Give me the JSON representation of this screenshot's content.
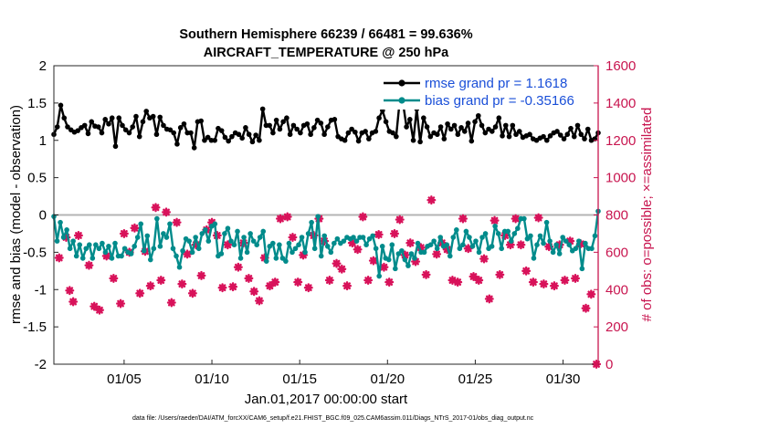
{
  "chart_data": {
    "type": "line",
    "title_line1": "Southern Hemisphere 66239 / 66481 = 99.636%",
    "title_line2": "AIRCRAFT_TEMPERATURE @ 250 hPa",
    "xlabel": "Jan.01,2017 00:00:00 start",
    "ylabel_left": "rmse and bias (model - observation)",
    "ylabel_right": "# of obs: o=possible; ×=assimilated",
    "footer": "data file: /Users/raeder/DAI/ATM_forcXX/CAM6_setup/f.e21.FHIST_BGC.f09_025.CAM6assim.011/Diags_NTrS_2017-01/obs_diag_output.nc",
    "xlim": [
      1,
      32
    ],
    "ylim_left": [
      -2,
      2
    ],
    "ylim_right": [
      0,
      1600
    ],
    "x_ticks": [
      5,
      10,
      15,
      20,
      25,
      30
    ],
    "x_tick_labels": [
      "01/05",
      "01/10",
      "01/15",
      "01/20",
      "01/25",
      "01/30"
    ],
    "y_ticks_left": [
      2,
      1.5,
      1,
      0.5,
      0,
      -0.5,
      -1,
      -1.5,
      -2
    ],
    "y_tick_labels_left": [
      "2",
      "1.5",
      "1",
      "0.5",
      "0",
      "-0.5",
      "-1",
      "-1.5",
      "-2"
    ],
    "y_ticks_right": [
      1600,
      1400,
      1200,
      1000,
      800,
      600,
      400,
      200,
      0
    ],
    "y_tick_labels_right": [
      "1600",
      "1400",
      "1200",
      "1000",
      "800",
      "600",
      "400",
      "200",
      "0"
    ],
    "zero_line": 0,
    "grid": false,
    "legend_position": "top-right",
    "colors": {
      "rmse": "#000000",
      "bias": "#008b8b",
      "obs": "#d8125a",
      "zero": "#b4b4b4",
      "right_axis": "#c8154f",
      "legend_text": "#1a4fd8"
    },
    "series": [
      {
        "name": "rmse grand pr = 1.1618",
        "color": "#000000",
        "values": [
          1.08,
          1.18,
          1.47,
          1.3,
          1.18,
          1.14,
          1.11,
          1.13,
          1.17,
          1.2,
          1.09,
          1.25,
          1.19,
          1.18,
          1.1,
          1.28,
          1.22,
          1.3,
          0.92,
          1.3,
          1.2,
          1.14,
          1.1,
          1.18,
          1.32,
          1.05,
          1.25,
          1.39,
          1.3,
          1.32,
          1.08,
          1.31,
          1.2,
          1.15,
          1.14,
          1.1,
          0.95,
          1.17,
          1.22,
          1.1,
          1.1,
          0.9,
          1.25,
          1.26,
          1.0,
          1.04,
          1.0,
          1.0,
          1.16,
          1.13,
          1.04,
          0.99,
          1.05,
          1.1,
          1.08,
          1.03,
          1.17,
          1.08,
          0.98,
          1.07,
          1.0,
          1.42,
          1.2,
          1.2,
          1.1,
          1.27,
          1.15,
          1.25,
          1.3,
          1.08,
          1.2,
          1.15,
          1.1,
          1.2,
          1.22,
          1.08,
          1.17,
          1.27,
          1.23,
          1.08,
          1.18,
          1.27,
          1.28,
          1.05,
          1.02,
          1.0,
          1.1,
          1.15,
          1.11,
          0.99,
          1.1,
          1.12,
          1.02,
          1.1,
          1.12,
          1.3,
          1.4,
          1.25,
          1.12,
          1.1,
          1.05,
          1.52,
          1.5,
          1.18,
          1.28,
          1.0,
          1.42,
          0.98,
          1.3,
          1.18,
          1.05,
          1.1,
          1.08,
          1.18,
          1.02,
          1.22,
          1.15,
          1.2,
          1.08,
          1.17,
          1.12,
          1.23,
          0.99,
          1.25,
          1.33,
          1.2,
          1.1,
          1.15,
          1.12,
          1.18,
          1.3,
          1.06,
          1.2,
          1.05,
          1.2,
          1.08,
          1.12,
          1.04,
          1.06,
          1.08,
          1.02,
          1.0,
          1.03,
          1.05,
          1.0,
          1.06,
          1.1,
          1.12,
          1.07,
          1.02,
          1.08,
          1.16,
          1.05,
          1.2,
          1.08,
          1.02,
          1.15,
          1.0,
          1.02,
          1.1
        ]
      },
      {
        "name": "bias grand pr = -0.35166",
        "color": "#008b8b",
        "values": [
          -0.02,
          -0.35,
          -0.1,
          -0.3,
          -0.2,
          -0.45,
          -0.35,
          -0.55,
          -0.4,
          -0.58,
          -0.45,
          -0.4,
          -0.58,
          -0.4,
          -0.45,
          -0.38,
          -0.5,
          -0.42,
          -0.58,
          -0.38,
          -0.55,
          -0.55,
          -0.45,
          -0.5,
          -0.52,
          -0.42,
          -0.3,
          -0.12,
          -0.48,
          -0.28,
          -0.6,
          -0.45,
          -0.05,
          -0.42,
          -0.25,
          -0.3,
          -0.12,
          -0.45,
          -0.55,
          -0.7,
          -0.48,
          -0.32,
          -0.35,
          -0.5,
          -0.3,
          -0.45,
          -0.25,
          -0.2,
          -0.35,
          -0.15,
          -0.12,
          -0.55,
          -0.52,
          -0.25,
          -0.18,
          -0.35,
          -0.4,
          -0.22,
          -0.58,
          -0.3,
          -0.5,
          -0.25,
          -0.35,
          -0.4,
          -0.3,
          -0.22,
          -0.62,
          -0.42,
          -0.38,
          -0.58,
          -0.4,
          -0.58,
          -0.62,
          -0.38,
          -0.5,
          -0.45,
          -0.4,
          -0.3,
          -0.5,
          -0.25,
          -0.1,
          -0.45,
          -0.02,
          -0.55,
          -0.28,
          -0.42,
          -0.5,
          -0.38,
          -0.32,
          -0.38,
          -0.35,
          -0.3,
          -0.32,
          -0.3,
          -0.35,
          -0.3,
          -0.3,
          -0.4,
          -0.32,
          -0.28,
          -0.45,
          -0.82,
          -0.42,
          -0.58,
          -0.6,
          -0.4,
          -0.72,
          -0.52,
          -0.48,
          -0.6,
          -0.68,
          -0.52,
          -0.58,
          -0.38,
          -0.5,
          -0.5,
          -0.42,
          -0.4,
          -0.35,
          -0.45,
          -0.3,
          -0.42,
          -0.4,
          -0.55,
          -0.3,
          -0.2,
          -0.45,
          -0.4,
          -0.22,
          -0.3,
          -0.42,
          -0.35,
          -0.5,
          -0.3,
          -0.25,
          -0.45,
          -0.42,
          -0.15,
          -0.25,
          -0.45,
          -0.22,
          -0.22,
          -0.35,
          -0.25,
          -0.18,
          -0.05,
          -0.05,
          -0.32,
          -0.28,
          -0.58,
          -0.4,
          -0.28,
          -0.38,
          -0.1,
          -0.35,
          -0.5,
          -0.4,
          -0.52,
          -0.3,
          -0.35,
          -0.4,
          -0.48,
          -0.45,
          -0.35,
          -0.72,
          -0.38,
          -0.45,
          -0.45,
          -0.28,
          0.05
        ]
      }
    ],
    "obs_counts_assimilated": [
      [
        1.3,
        570
      ],
      [
        1.7,
        680
      ],
      [
        1.9,
        395
      ],
      [
        2.1,
        335
      ],
      [
        2.4,
        690
      ],
      [
        3.0,
        530
      ],
      [
        3.3,
        310
      ],
      [
        3.6,
        290
      ],
      [
        4.0,
        580
      ],
      [
        4.4,
        460
      ],
      [
        4.8,
        325
      ],
      [
        5.0,
        700
      ],
      [
        5.3,
        600
      ],
      [
        5.6,
        730
      ],
      [
        5.9,
        380
      ],
      [
        6.2,
        605
      ],
      [
        6.5,
        420
      ],
      [
        6.8,
        840
      ],
      [
        7.1,
        450
      ],
      [
        7.4,
        815
      ],
      [
        7.7,
        330
      ],
      [
        8.0,
        760
      ],
      [
        8.3,
        430
      ],
      [
        8.6,
        590
      ],
      [
        8.9,
        380
      ],
      [
        9.1,
        640
      ],
      [
        9.4,
        475
      ],
      [
        9.7,
        720
      ],
      [
        10.0,
        760
      ],
      [
        10.3,
        690
      ],
      [
        10.6,
        410
      ],
      [
        10.9,
        640
      ],
      [
        11.2,
        415
      ],
      [
        11.5,
        520
      ],
      [
        11.8,
        650
      ],
      [
        12.1,
        460
      ],
      [
        12.4,
        390
      ],
      [
        12.7,
        340
      ],
      [
        13.0,
        570
      ],
      [
        13.3,
        420
      ],
      [
        13.6,
        440
      ],
      [
        13.9,
        780
      ],
      [
        14.3,
        790
      ],
      [
        14.6,
        680
      ],
      [
        14.9,
        440
      ],
      [
        15.2,
        585
      ],
      [
        15.5,
        410
      ],
      [
        15.8,
        690
      ],
      [
        16.1,
        780
      ],
      [
        16.4,
        660
      ],
      [
        16.7,
        450
      ],
      [
        17.1,
        540
      ],
      [
        17.4,
        510
      ],
      [
        17.7,
        420
      ],
      [
        18.0,
        650
      ],
      [
        18.3,
        615
      ],
      [
        18.6,
        790
      ],
      [
        18.9,
        450
      ],
      [
        19.2,
        555
      ],
      [
        19.5,
        695
      ],
      [
        19.8,
        520
      ],
      [
        20.1,
        440
      ],
      [
        20.4,
        700
      ],
      [
        20.7,
        775
      ],
      [
        21.0,
        585
      ],
      [
        21.3,
        650
      ],
      [
        21.6,
        550
      ],
      [
        21.9,
        625
      ],
      [
        22.2,
        480
      ],
      [
        22.5,
        880
      ],
      [
        22.8,
        590
      ],
      [
        23.1,
        650
      ],
      [
        23.4,
        615
      ],
      [
        23.7,
        450
      ],
      [
        24.0,
        440
      ],
      [
        24.3,
        780
      ],
      [
        24.6,
        620
      ],
      [
        24.9,
        470
      ],
      [
        25.2,
        450
      ],
      [
        25.5,
        565
      ],
      [
        25.8,
        350
      ],
      [
        26.1,
        770
      ],
      [
        26.4,
        480
      ],
      [
        26.7,
        690
      ],
      [
        27.0,
        640
      ],
      [
        27.3,
        780
      ],
      [
        27.6,
        640
      ],
      [
        27.9,
        500
      ],
      [
        28.3,
        440
      ],
      [
        28.6,
        785
      ],
      [
        28.9,
        430
      ],
      [
        29.2,
        630
      ],
      [
        29.5,
        420
      ],
      [
        29.8,
        640
      ],
      [
        30.1,
        450
      ],
      [
        30.4,
        660
      ],
      [
        30.7,
        460
      ],
      [
        31.0,
        645
      ],
      [
        31.3,
        300
      ],
      [
        31.6,
        375
      ],
      [
        31.9,
        0
      ]
    ]
  }
}
